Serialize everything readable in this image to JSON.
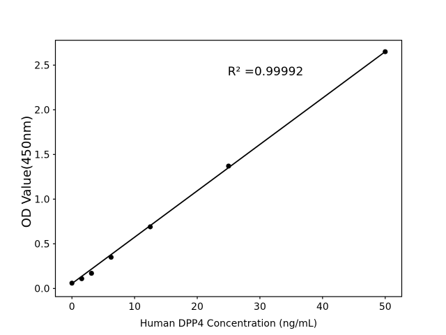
{
  "chart_data": {
    "type": "scatter",
    "title": "",
    "xlabel": "Human DPP4 Concentration (ng/mL)",
    "ylabel": "OD Value(450nm)",
    "annotation": {
      "text": "R² =0.99992"
    },
    "x": [
      0,
      1.56,
      3.12,
      6.25,
      12.5,
      25,
      50
    ],
    "y": [
      0.06,
      0.11,
      0.17,
      0.35,
      0.69,
      1.37,
      2.65
    ],
    "trendline": {
      "x1": 0,
      "y1": 0.055,
      "x2": 50,
      "y2": 2.65
    },
    "xticks": [
      0,
      10,
      20,
      30,
      40,
      50
    ],
    "xtick_labels": [
      "0",
      "10",
      "20",
      "30",
      "40",
      "50"
    ],
    "yticks": [
      0.0,
      0.5,
      1.0,
      1.5,
      2.0,
      2.5
    ],
    "ytick_labels": [
      "0.0",
      "0.5",
      "1.0",
      "1.5",
      "2.0",
      "2.5"
    ],
    "xlim": [
      -2.64,
      52.64
    ],
    "ylim": [
      -0.091,
      2.778
    ],
    "grid": false,
    "legend": null,
    "marker_color": "#000000",
    "line_color": "#000000",
    "axis_color": "#000000",
    "background": "#ffffff"
  }
}
